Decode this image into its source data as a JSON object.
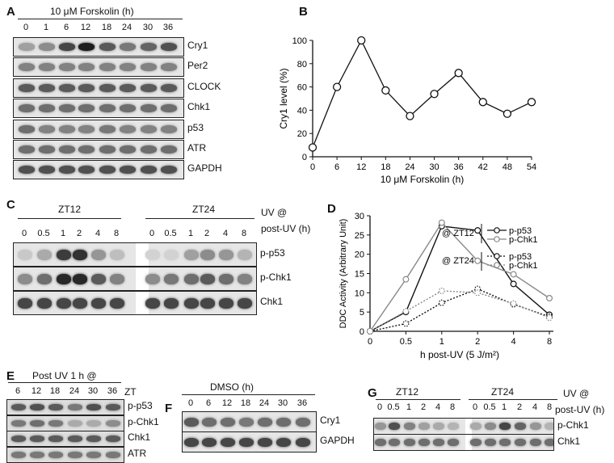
{
  "panelA": {
    "letter": "A",
    "treatment": "10 μM Forskolin (h)",
    "lanes": [
      "0",
      "1",
      "6",
      "12",
      "18",
      "24",
      "30",
      "36"
    ],
    "blots": [
      {
        "label": "Cry1",
        "intensity": [
          0.35,
          0.45,
          0.8,
          1.0,
          0.7,
          0.55,
          0.65,
          0.75
        ]
      },
      {
        "label": "Per2",
        "intensity": [
          0.5,
          0.5,
          0.5,
          0.5,
          0.5,
          0.5,
          0.5,
          0.5
        ]
      },
      {
        "label": "CLOCK",
        "intensity": [
          0.7,
          0.7,
          0.7,
          0.7,
          0.7,
          0.7,
          0.7,
          0.7
        ]
      },
      {
        "label": "Chk1",
        "intensity": [
          0.6,
          0.6,
          0.6,
          0.6,
          0.6,
          0.6,
          0.6,
          0.6
        ]
      },
      {
        "label": "p53",
        "intensity": [
          0.6,
          0.5,
          0.5,
          0.5,
          0.55,
          0.5,
          0.5,
          0.5
        ]
      },
      {
        "label": "ATR",
        "intensity": [
          0.6,
          0.6,
          0.6,
          0.6,
          0.6,
          0.6,
          0.6,
          0.6
        ]
      },
      {
        "label": "GAPDH",
        "intensity": [
          0.75,
          0.75,
          0.75,
          0.75,
          0.75,
          0.75,
          0.75,
          0.75
        ]
      }
    ]
  },
  "panelB": {
    "letter": "B",
    "chart_data": {
      "type": "line",
      "xlabel": "10 μM Forskolin (h)",
      "ylabel": "Cry1 level (%)",
      "x": [
        0,
        6,
        12,
        18,
        24,
        30,
        36,
        42,
        48,
        54
      ],
      "y": [
        8,
        60,
        100,
        57,
        35,
        54,
        72,
        47,
        37,
        47
      ],
      "xlim": [
        0,
        54
      ],
      "ylim": [
        0,
        100
      ],
      "xticks": [
        "0",
        "6",
        "12",
        "18",
        "24",
        "30",
        "36",
        "42",
        "48",
        "54"
      ],
      "yticks": [
        "0",
        "20",
        "40",
        "60",
        "80",
        "100"
      ]
    }
  },
  "panelC": {
    "letter": "C",
    "group1": "ZT12",
    "group2": "ZT24",
    "uv_label": "UV @",
    "post_uv_label": "post-UV (h)",
    "lanes": [
      "0",
      "0.5",
      "1",
      "2",
      "4",
      "8",
      "0",
      "0.5",
      "1",
      "2",
      "4",
      "8"
    ],
    "blots": [
      {
        "label": "p-p53",
        "intensity": [
          0.15,
          0.3,
          0.85,
          0.9,
          0.4,
          0.2,
          0.1,
          0.1,
          0.35,
          0.45,
          0.4,
          0.25
        ]
      },
      {
        "label": "p-Chk1",
        "intensity": [
          0.45,
          0.6,
          0.95,
          0.95,
          0.7,
          0.5,
          0.45,
          0.55,
          0.6,
          0.7,
          0.6,
          0.5
        ]
      },
      {
        "label": "Chk1",
        "intensity": [
          0.8,
          0.8,
          0.8,
          0.8,
          0.8,
          0.8,
          0.8,
          0.8,
          0.8,
          0.8,
          0.8,
          0.8
        ]
      }
    ]
  },
  "panelD": {
    "letter": "D",
    "chart_data": {
      "type": "line",
      "xlabel": "h post-UV (5 J/m²)",
      "ylabel": "DDC Activity (Arbitrary Unit)",
      "x": [
        "0",
        "0.5",
        "1",
        "2",
        "4",
        "8"
      ],
      "ylim": [
        0,
        30
      ],
      "yticks": [
        "0",
        "5",
        "10",
        "15",
        "20",
        "25",
        "30"
      ],
      "legend_groups": [
        "@ ZT12",
        "@ ZT24"
      ],
      "series": [
        {
          "name": "p-p53",
          "group": "@ ZT12",
          "values": [
            0,
            5,
            27.3,
            26.2,
            12.3,
            4.3
          ],
          "color": "#111111",
          "style": "solid"
        },
        {
          "name": "p-Chk1",
          "group": "@ ZT12",
          "values": [
            0,
            13.5,
            28.2,
            18.3,
            14.8,
            8.6
          ],
          "color": "#888888",
          "style": "solid"
        },
        {
          "name": "p-p53",
          "group": "@ ZT24",
          "values": [
            0,
            2,
            7.4,
            11,
            7,
            3.8
          ],
          "color": "#111111",
          "style": "dotted"
        },
        {
          "name": "p-Chk1",
          "group": "@ ZT24",
          "values": [
            0,
            5.2,
            10.5,
            10,
            7.2,
            3.5
          ],
          "color": "#888888",
          "style": "dotted"
        }
      ]
    }
  },
  "panelE": {
    "letter": "E",
    "title": "Post UV 1 h @",
    "axis": "ZT",
    "lanes": [
      "6",
      "12",
      "18",
      "24",
      "30",
      "36"
    ],
    "blots": [
      {
        "label": "p-p53",
        "intensity": [
          0.7,
          0.75,
          0.7,
          0.55,
          0.75,
          0.7
        ]
      },
      {
        "label": "p-Chk1",
        "intensity": [
          0.55,
          0.6,
          0.55,
          0.3,
          0.3,
          0.45
        ]
      },
      {
        "label": "Chk1",
        "intensity": [
          0.7,
          0.7,
          0.7,
          0.7,
          0.7,
          0.7
        ]
      },
      {
        "label": "ATR",
        "intensity": [
          0.55,
          0.55,
          0.55,
          0.55,
          0.55,
          0.55
        ]
      }
    ]
  },
  "panelF": {
    "letter": "F",
    "title": "DMSO (h)",
    "lanes": [
      "0",
      "6",
      "12",
      "18",
      "24",
      "30",
      "36"
    ],
    "blots": [
      {
        "label": "Cry1",
        "intensity": [
          0.7,
          0.6,
          0.6,
          0.55,
          0.6,
          0.6,
          0.6
        ]
      },
      {
        "label": "GAPDH",
        "intensity": [
          0.8,
          0.8,
          0.8,
          0.8,
          0.8,
          0.8,
          0.8
        ]
      }
    ]
  },
  "panelG": {
    "letter": "G",
    "group1": "ZT12",
    "group2": "ZT24",
    "uv_label": "UV @",
    "post_uv_label": "post-UV (h)",
    "lanes": [
      "0",
      "0.5",
      "1",
      "2",
      "4",
      "8",
      "0",
      "0.5",
      "1",
      "2",
      "4",
      "8"
    ],
    "blots": [
      {
        "label": "p-Chk1",
        "intensity": [
          0.4,
          0.75,
          0.5,
          0.35,
          0.3,
          0.25,
          0.3,
          0.45,
          0.8,
          0.65,
          0.4,
          0.25
        ]
      },
      {
        "label": "Chk1",
        "intensity": [
          0.6,
          0.6,
          0.6,
          0.6,
          0.6,
          0.6,
          0.6,
          0.6,
          0.6,
          0.6,
          0.6,
          0.6
        ]
      }
    ]
  }
}
